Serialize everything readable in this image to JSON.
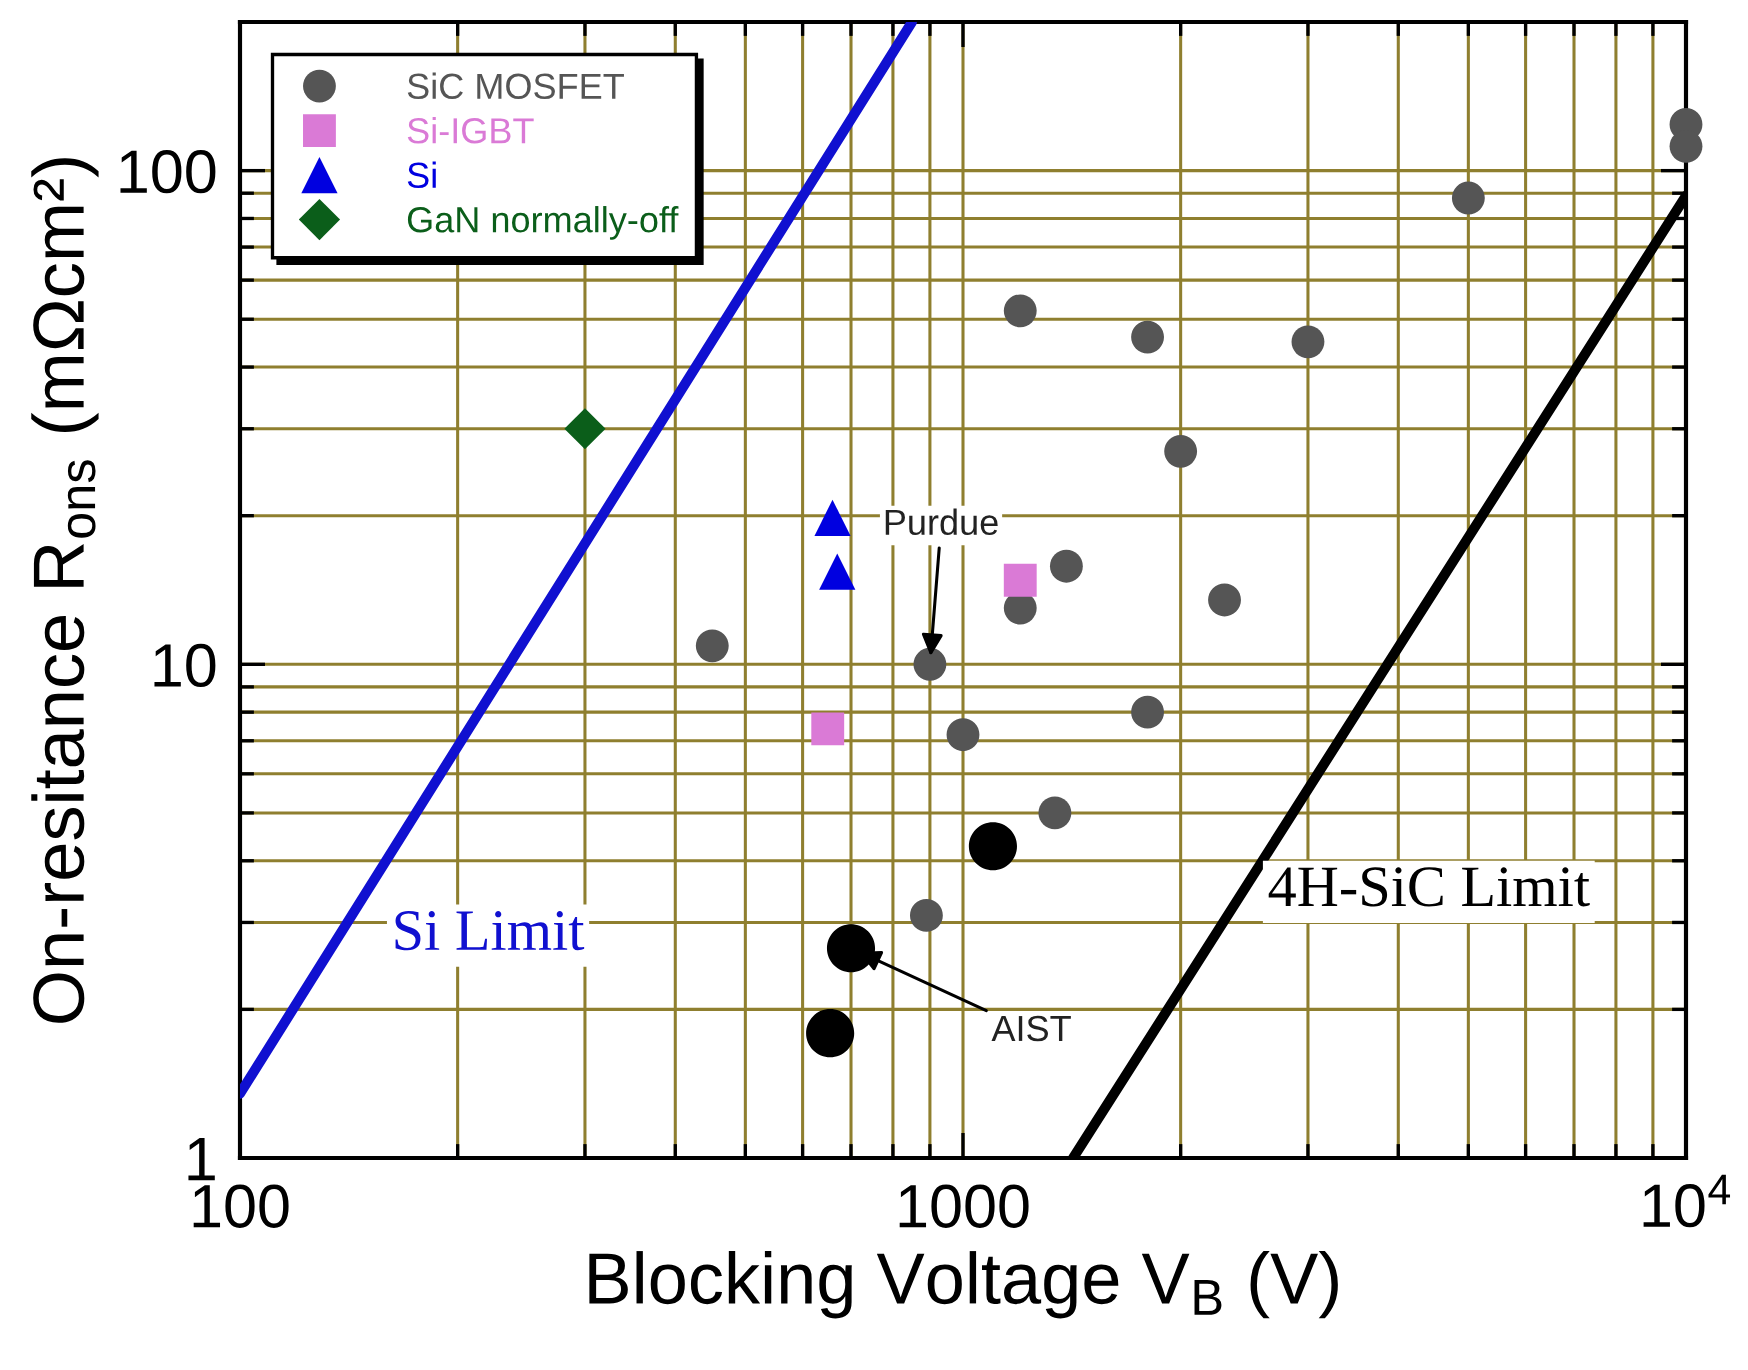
{
  "chart_data": {
    "type": "scatter",
    "xlabel": "Blocking Voltage V$_{B}$ (V)",
    "ylabel": "On-resitance R$_{ons}$ (mΩcm²)",
    "log": "xy",
    "grid": true,
    "legend": "top left",
    "xlim": [
      100,
      10000
    ],
    "ylim": [
      1,
      200
    ],
    "xticks": [
      100,
      {
        "value": 200,
        "label": null
      },
      {
        "value": 300,
        "label": null
      },
      {
        "value": 400,
        "label": null
      },
      {
        "value": 500,
        "label": null
      },
      {
        "value": 600,
        "label": null
      },
      {
        "value": 700,
        "label": null
      },
      {
        "value": 800,
        "label": null
      },
      {
        "value": 900,
        "label": null
      },
      1000,
      {
        "value": 2000,
        "label": null
      },
      {
        "value": 3000,
        "label": null
      },
      {
        "value": 4000,
        "label": null
      },
      {
        "value": 5000,
        "label": null
      },
      {
        "value": 6000,
        "label": null
      },
      {
        "value": 7000,
        "label": null
      },
      {
        "value": 8000,
        "label": null
      },
      {
        "value": 9000,
        "label": null
      },
      {
        "value": 10000,
        "label": "10$^{4}$"
      }
    ],
    "yticks": [
      1,
      {
        "value": 2,
        "label": null
      },
      {
        "value": 3,
        "label": null
      },
      {
        "value": 4,
        "label": null
      },
      {
        "value": 5,
        "label": null
      },
      {
        "value": 6,
        "label": null
      },
      {
        "value": 7,
        "label": null
      },
      {
        "value": 8,
        "label": null
      },
      {
        "value": 9,
        "label": null
      },
      10,
      {
        "value": 20,
        "label": null
      },
      {
        "value": 30,
        "label": null
      },
      {
        "value": 40,
        "label": null
      },
      {
        "value": 50,
        "label": null
      },
      {
        "value": 60,
        "label": null
      },
      {
        "value": 70,
        "label": null
      },
      {
        "value": 80,
        "label": null
      },
      {
        "value": 90,
        "label": null
      },
      100
    ],
    "series": [
      {
        "name": "SiC MOSFET",
        "color": "#555555",
        "marker": "circle",
        "x": [
          10000,
          10000,
          5000,
          1200,
          1800,
          3000,
          2000,
          1390,
          1200,
          2300,
          1800,
          1340,
          1000,
          900,
          450,
          890
        ],
        "values": [
          124,
          112,
          88,
          52,
          46,
          45,
          27,
          15.8,
          13,
          13.5,
          8,
          5,
          7.2,
          10,
          10.9,
          3.1
        ]
      },
      {
        "color": "#000000",
        "marker": "circle",
        "x": [
          700,
          655,
          1100
        ],
        "values": [
          2.66,
          1.79,
          4.28
        ]
      },
      {
        "name": "Si-IGBT",
        "color": "#da7ad6",
        "marker": "square",
        "x": [
          650,
          1200
        ],
        "values": [
          7.4,
          14.8
        ]
      },
      {
        "name": "Si",
        "color": "#0000e0",
        "marker": "triangle",
        "x": [
          660,
          670
        ],
        "values": [
          19.8,
          15.4
        ]
      },
      {
        "name": "GaN normally-off",
        "color": "#0b5e1a",
        "marker": "diamond",
        "x": [
          300
        ],
        "values": [
          30
        ]
      },
      {
        "type": "line",
        "color": "#1010d0",
        "marker": "none",
        "line_style": "solid",
        "x": [
          100,
          850
        ],
        "values": [
          1.35,
          200
        ]
      },
      {
        "type": "line",
        "color": "#000000",
        "marker": "none",
        "line_style": "solid",
        "x": [
          1420,
          10000
        ],
        "values": [
          1,
          89
        ]
      }
    ],
    "annotations": [
      {
        "text": "Purdue",
        "x": 900,
        "y": 10
      },
      {
        "text": "AIST",
        "x": 700,
        "y": 2.66
      },
      {
        "text": "Si Limit",
        "x": 137,
        "y": 2.82
      },
      {
        "text": "4H-SiC Limit",
        "x": 2436,
        "y": 3.46
      }
    ]
  }
}
